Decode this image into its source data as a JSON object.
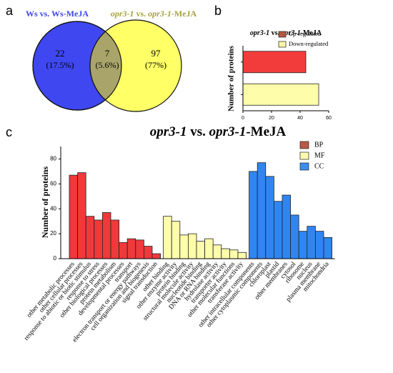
{
  "chart_data": [
    {
      "type": "venn",
      "panel": "a",
      "sets": [
        {
          "title": [
            {
              "text": "Ws vs. Ws-MeJA",
              "italic": false
            }
          ],
          "color": "#3e47f0",
          "label_color": "#3e47f0"
        },
        {
          "title": [
            {
              "text": "opr3-1",
              "italic": true
            },
            {
              "text": " vs. ",
              "italic": false
            },
            {
              "text": "opr3-1",
              "italic": true
            },
            {
              "text": "-MeJA",
              "italic": false
            }
          ],
          "color": "#ffff66",
          "label_color": "#a6a33a"
        }
      ],
      "values": [
        22,
        7,
        97
      ],
      "percents": [
        17.5,
        5.6,
        77
      ],
      "percent_labels": [
        "(17.5%)",
        "(5.6%)",
        "(77%)"
      ]
    },
    {
      "type": "hbar",
      "panel": "b",
      "title": [
        {
          "text": "opr3-1",
          "italic": true
        },
        {
          "text": " vs. ",
          "italic": false
        },
        {
          "text": "opr3-1",
          "italic": true
        },
        {
          "text": "-MeJA",
          "italic": false
        }
      ],
      "ylabel": "Number of proteins",
      "series": [
        {
          "name": "Up-regulated",
          "color": "#f23c3c",
          "legend_color": "#b3563f",
          "values": [
            44
          ]
        },
        {
          "name": "Down-regulated",
          "color": "#fdfdaa",
          "legend_color": "#fbf6a8",
          "values": [
            53
          ]
        }
      ],
      "xlim": [
        0,
        60
      ],
      "xticks": [
        0,
        20,
        40,
        60
      ]
    },
    {
      "type": "bar",
      "panel": "c",
      "title": [
        {
          "text": "opr3-1",
          "italic": true
        },
        {
          "text": " vs. ",
          "italic": false
        },
        {
          "text": "opr3-1",
          "italic": true
        },
        {
          "text": "-MeJA",
          "italic": false
        }
      ],
      "ylabel": "Number of proteins",
      "series": [
        {
          "name": "BP",
          "color": "#f0393b",
          "legend_color": "#b85a45",
          "categories": [
            "other metabolic processes",
            "other cellular processes",
            "response to abiotic or biotic stimulus",
            "response to stress",
            "other biological processes",
            "protein metabolism",
            "developmental processes",
            "transport",
            "electron transport or energy pathways",
            "cell organization and biogenesis",
            "signal transduction"
          ],
          "values": [
            67,
            69,
            34,
            31,
            37,
            31,
            13,
            16,
            15,
            10,
            4
          ]
        },
        {
          "name": "MF",
          "color": "#fdfdaa",
          "legend_color": "#fbfbb0",
          "categories": [
            "other binding",
            "other enzyme activity",
            "protein binding",
            "structural molecule activity",
            "nucleotide binding",
            "DNA or RNA binding",
            "hydrolase activity",
            "transporter activity",
            "other molecular functions",
            "transferase activity"
          ],
          "values": [
            34,
            30,
            19,
            20,
            14,
            16,
            11,
            8,
            7,
            5
          ]
        },
        {
          "name": "CC",
          "color": "#2f86f0",
          "legend_color": "#3a8ef0",
          "categories": [
            "other intracellular components",
            "other cytoplasmic components",
            "chloroplast",
            "plastid",
            "other membranes",
            "cytosol",
            "ribosome",
            "nucleus",
            "plasma membrane",
            "mitochondria"
          ],
          "values": [
            70,
            77,
            66,
            46,
            51,
            35,
            22,
            26,
            22,
            17
          ]
        }
      ],
      "ylim": [
        0,
        90
      ],
      "yticks": [
        0,
        20,
        40,
        60,
        80
      ]
    }
  ]
}
